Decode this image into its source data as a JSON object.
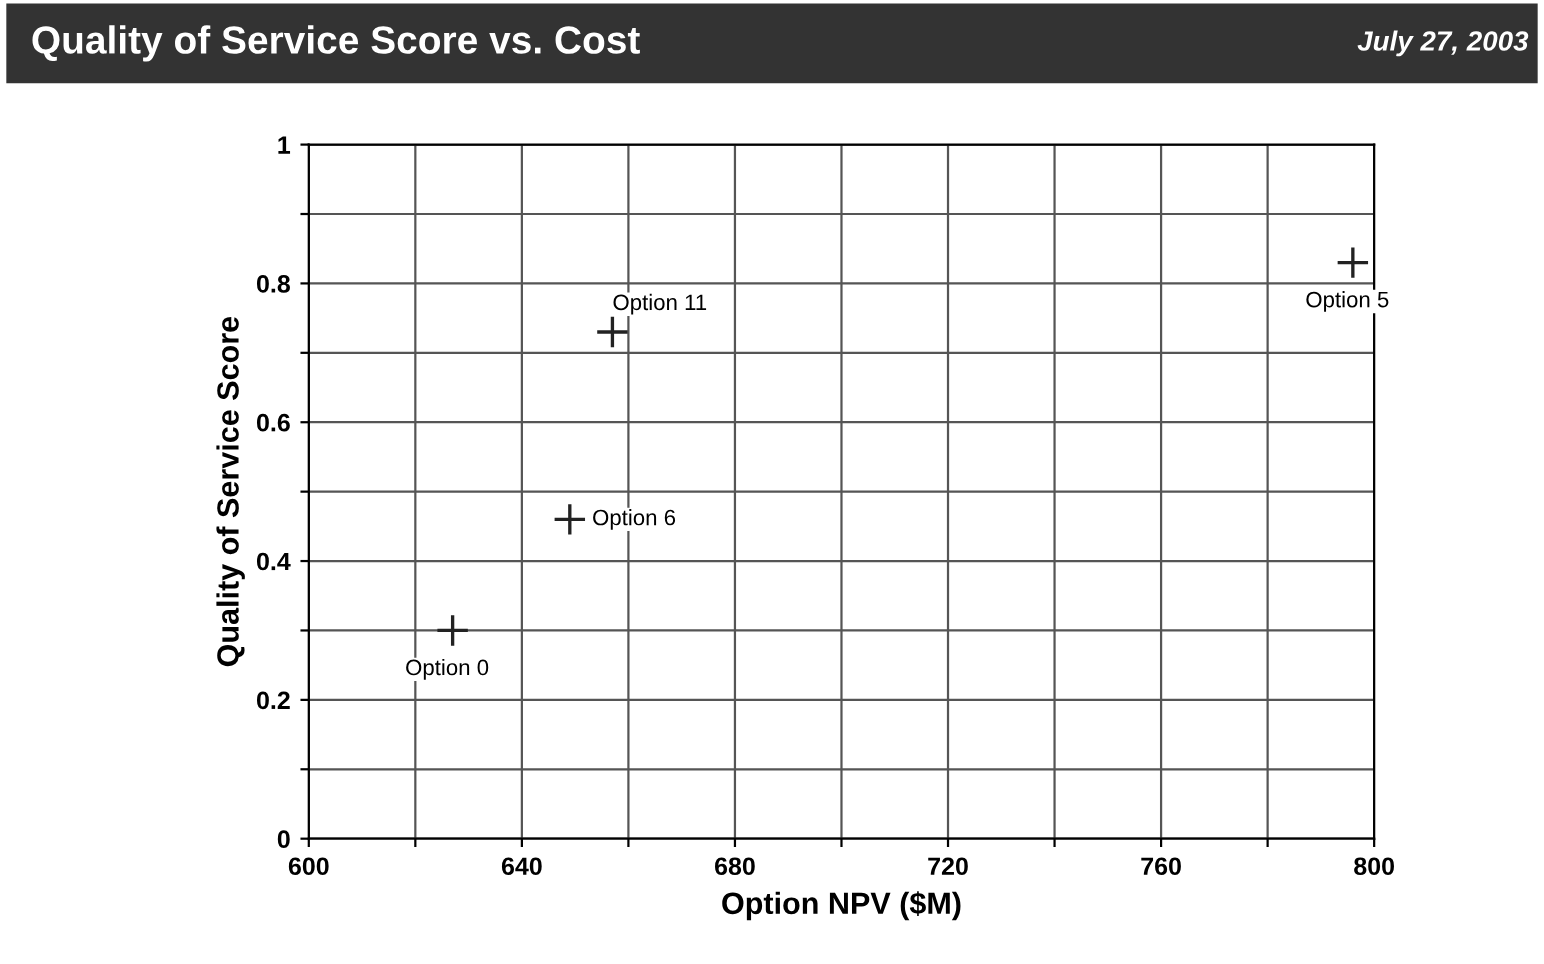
{
  "chart_data": {
    "type": "scatter",
    "title": "Quality of Service Score vs. Cost",
    "subtitle": "July 27, 2003",
    "xlabel": "Option NPV ($M)",
    "ylabel": "Quality of Service Score",
    "x": [
      627,
      649,
      657,
      796
    ],
    "series": [
      {
        "color": "#222222",
        "values": [
          0.3,
          0.46,
          0.73,
          0.83
        ]
      }
    ],
    "annotations": [
      {
        "text": "Option 0",
        "x": 627,
        "y": 0.3
      },
      {
        "text": "Option 6",
        "x": 649,
        "y": 0.46
      },
      {
        "text": "Option 11",
        "x": 657,
        "y": 0.73
      },
      {
        "text": "Option 5",
        "x": 796,
        "y": 0.83
      }
    ],
    "xlim": [
      600,
      800
    ],
    "ylim": [
      0,
      1
    ],
    "xticks": [
      600,
      {
        "value": 620,
        "label": null
      },
      640,
      {
        "value": 660,
        "label": null
      },
      680,
      {
        "value": 700,
        "label": null
      },
      720,
      {
        "value": 740,
        "label": null
      },
      760,
      {
        "value": 780,
        "label": null
      },
      800
    ],
    "yticks": [
      0,
      {
        "value": 0.1,
        "label": null
      },
      0.2,
      {
        "value": 0.3,
        "label": null
      },
      0.4,
      {
        "value": 0.5,
        "label": null
      },
      0.6,
      {
        "value": 0.7,
        "label": null
      },
      0.8,
      {
        "value": 0.9,
        "label": null
      },
      1
    ],
    "grid": true,
    "marker": "cross",
    "legend": false
  }
}
